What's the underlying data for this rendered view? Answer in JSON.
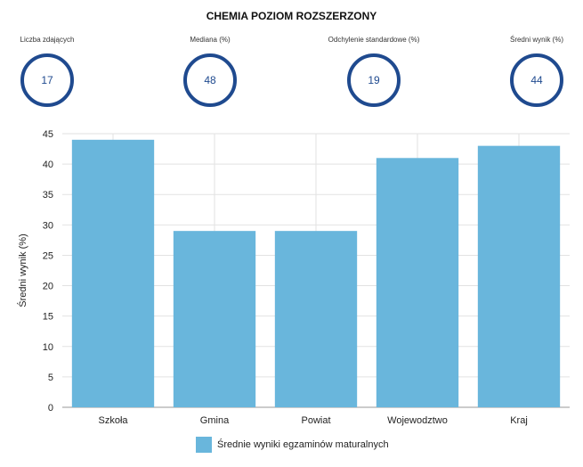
{
  "title": "CHEMIA POZIOM ROZSZERZONY",
  "stats": [
    {
      "label": "Liczba zdających",
      "value": "17"
    },
    {
      "label": "Mediana (%)",
      "value": "48"
    },
    {
      "label": "Odchylenie standardowe (%)",
      "value": "19"
    },
    {
      "label": "Średni wynik (%)",
      "value": "44"
    }
  ],
  "colors": {
    "bar": "#69b6dc",
    "ring": "#1f4a8f",
    "grid": "#e2e2e2"
  },
  "chart_data": {
    "type": "bar",
    "categories": [
      "Szkoła",
      "Gmina",
      "Powiat",
      "Wojewodztwo",
      "Kraj"
    ],
    "values": [
      44,
      29,
      29,
      41,
      43
    ],
    "ylabel": "Średni wynik (%)",
    "xlabel": "",
    "ylim": [
      0,
      45
    ],
    "yticks": [
      0,
      5,
      10,
      15,
      20,
      25,
      30,
      35,
      40,
      45
    ],
    "grid": true,
    "legend": {
      "position": "bottom",
      "entries": [
        "Średnie wyniki egzaminów maturalnych"
      ]
    }
  }
}
